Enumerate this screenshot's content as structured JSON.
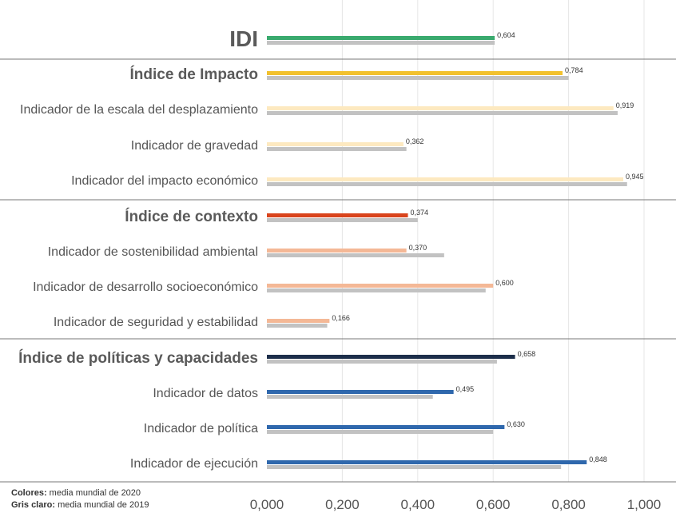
{
  "chart_data": {
    "type": "bar",
    "orientation": "horizontal",
    "xlim": [
      0,
      1
    ],
    "xticks": [
      "0,000",
      "0,200",
      "0,400",
      "0,600",
      "0,800",
      "1,000"
    ],
    "grid": true,
    "rows": [
      {
        "label": "IDI",
        "level": "main",
        "v2020": 0.604,
        "v2019": 0.604,
        "value_label": "0,604",
        "color": "#3aaa6e"
      },
      {
        "label": "Índice de Impacto",
        "level": "index",
        "v2020": 0.784,
        "v2019": 0.8,
        "value_label": "0,784",
        "color": "#f2c12e"
      },
      {
        "label": "Indicador de la escala del desplazamiento",
        "level": "indicator",
        "v2020": 0.919,
        "v2019": 0.93,
        "value_label": "0,919",
        "color": "#fde9c0"
      },
      {
        "label": "Indicador de gravedad",
        "level": "indicator",
        "v2020": 0.362,
        "v2019": 0.37,
        "value_label": "0,362",
        "color": "#fde9c0"
      },
      {
        "label": "Indicador del impacto económico",
        "level": "indicator",
        "v2020": 0.945,
        "v2019": 0.955,
        "value_label": "0,945",
        "color": "#fde9c0"
      },
      {
        "label": "Índice de contexto",
        "level": "index",
        "v2020": 0.374,
        "v2019": 0.4,
        "value_label": "0,374",
        "color": "#d9441c"
      },
      {
        "label": "Indicador de sostenibilidad ambiental",
        "level": "indicator",
        "v2020": 0.37,
        "v2019": 0.47,
        "value_label": "0,370",
        "color": "#f4b896"
      },
      {
        "label": "Indicador de desarrollo socioeconómico",
        "level": "indicator",
        "v2020": 0.6,
        "v2019": 0.58,
        "value_label": "0,600",
        "color": "#f4b896"
      },
      {
        "label": "Indicador de seguridad y estabilidad",
        "level": "indicator",
        "v2020": 0.166,
        "v2019": 0.16,
        "value_label": "0,166",
        "color": "#f4b896"
      },
      {
        "label": "Índice de políticas y capacidades",
        "level": "index",
        "v2020": 0.658,
        "v2019": 0.61,
        "value_label": "0,658",
        "color": "#1c2e4a"
      },
      {
        "label": "Indicador de datos",
        "level": "indicator",
        "v2020": 0.495,
        "v2019": 0.44,
        "value_label": "0,495",
        "color": "#2f68ad"
      },
      {
        "label": "Indicador de política",
        "level": "indicator",
        "v2020": 0.63,
        "v2019": 0.6,
        "value_label": "0,630",
        "color": "#2f68ad"
      },
      {
        "label": "Indicador de ejecución",
        "level": "indicator",
        "v2020": 0.848,
        "v2019": 0.78,
        "value_label": "0,848",
        "color": "#2f68ad"
      }
    ],
    "series": [
      {
        "name": "media mundial de 2020",
        "color_note": "Colores"
      },
      {
        "name": "media mundial de 2019",
        "color": "#c2c2c2"
      }
    ]
  },
  "legend": {
    "colors_key": "Colores:",
    "colors_text": " media mundial de 2020",
    "gray_key": "Gris claro:",
    "gray_text": " media mundial de 2019"
  },
  "colors": {
    "gray_2019": "#c2c2c2",
    "grid": "#e6e6e6",
    "divider": "#777777"
  }
}
